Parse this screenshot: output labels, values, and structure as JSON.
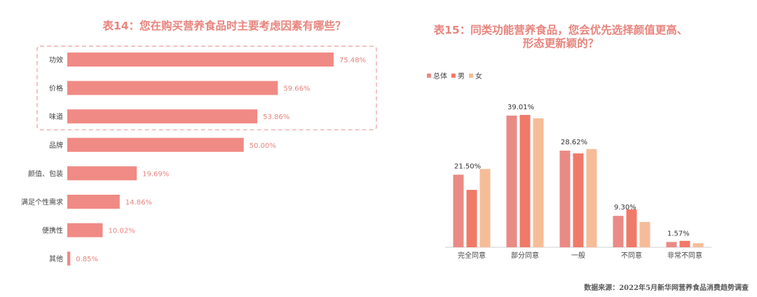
{
  "left": {
    "title": "表14：您在购买营养食品时主要考虑因素有哪些？",
    "chart_data": {
      "type": "bar",
      "orientation": "horizontal",
      "categories": [
        "功效",
        "价格",
        "味道",
        "品牌",
        "颜值、包装",
        "满足个性需求",
        "便携性",
        "其他"
      ],
      "values": [
        75.48,
        59.66,
        53.86,
        50.0,
        19.69,
        14.86,
        10.02,
        0.85
      ],
      "value_labels": [
        "75.48%",
        "59.66%",
        "53.86%",
        "50.00%",
        "19.69%",
        "14.86%",
        "10.02%",
        "0.85%"
      ],
      "bar_color": "#f08a84",
      "highlight_color": "#e8a09a",
      "highlighted_categories": [
        "功效",
        "价格",
        "味道"
      ],
      "xlim": [
        0,
        100
      ],
      "grid": false,
      "title": "表14：您在购买营养食品时主要考虑因素有哪些？"
    }
  },
  "right": {
    "title": "表15：同类功能营养食品，您会优先选择颜值更高、形态更新颖的？",
    "legend": [
      {
        "name": "总体",
        "color": "#ea8a85"
      },
      {
        "name": "男",
        "color": "#f07a68"
      },
      {
        "name": "女",
        "color": "#f6bc98"
      }
    ],
    "chart_data": {
      "type": "bar",
      "categories": [
        "完全同意",
        "部分同意",
        "一般",
        "不同意",
        "非常不同意"
      ],
      "series": [
        {
          "name": "总体",
          "values": [
            21.5,
            39.01,
            28.62,
            9.3,
            1.57
          ]
        },
        {
          "name": "男",
          "values": [
            17.0,
            39.2,
            27.8,
            11.2,
            1.9
          ]
        },
        {
          "name": "女",
          "values": [
            23.2,
            38.2,
            29.1,
            7.5,
            1.2
          ]
        }
      ],
      "value_labels": [
        "21.50%",
        "39.01%",
        "28.62%",
        "9.30%",
        "1.57%"
      ],
      "ylim": [
        0,
        42
      ],
      "grid": false,
      "legend_position": "top-left",
      "title": "表15：同类功能营养食品，您会优先选择颜值更高、形态更新颖的？"
    }
  },
  "source_text": "数据来源：2022年5月新华网营养食品消费趋势调查"
}
